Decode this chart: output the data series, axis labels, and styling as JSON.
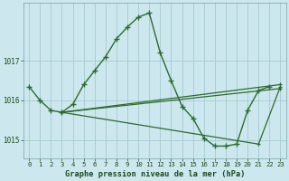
{
  "xlabel": "Graphe pression niveau de la mer (hPa)",
  "background_color": "#cce8ee",
  "grid_color": "#aacdd5",
  "line_color": "#2d6a2d",
  "hours": [
    0,
    1,
    2,
    3,
    4,
    5,
    6,
    7,
    8,
    9,
    10,
    11,
    12,
    13,
    14,
    15,
    16,
    17,
    18,
    19,
    20,
    21,
    22,
    23
  ],
  "series1": [
    1016.35,
    1016.0,
    1015.75,
    1015.7,
    1015.9,
    1016.4,
    1016.75,
    1017.1,
    1017.55,
    1017.85,
    1018.1,
    1018.2,
    1017.2,
    1016.5,
    1015.85,
    1015.55,
    1015.05,
    1014.85,
    1014.85,
    1014.9,
    1015.75,
    1016.25,
    1016.35,
    null
  ],
  "fan_lines": [
    [
      [
        3,
        1015.7
      ],
      [
        23,
        1016.4
      ]
    ],
    [
      [
        3,
        1015.7
      ],
      [
        23,
        1016.3
      ]
    ],
    [
      [
        3,
        1015.7
      ],
      [
        21,
        1014.9
      ],
      [
        23,
        1016.35
      ]
    ]
  ],
  "ylim_min": 1014.55,
  "ylim_max": 1018.45,
  "yticks": [
    1015,
    1016,
    1017
  ],
  "xticks": [
    0,
    1,
    2,
    3,
    4,
    5,
    6,
    7,
    8,
    9,
    10,
    11,
    12,
    13,
    14,
    15,
    16,
    17,
    18,
    19,
    20,
    21,
    22,
    23
  ]
}
